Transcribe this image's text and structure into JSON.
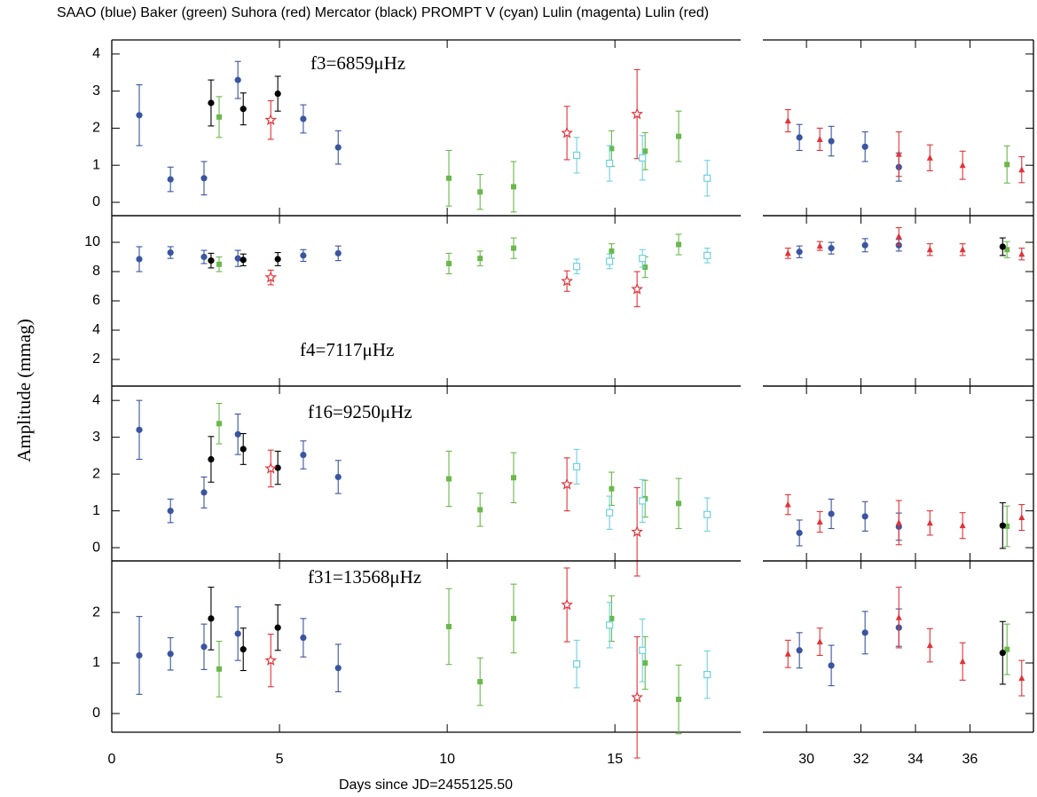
{
  "title": "SAAO (blue) Baker (green) Suhora (red) Mercator (black) PROMPT V (cyan) Lulin (magenta) Lulin (red)",
  "y_label": "Amplitude (mmag)",
  "x_axis": {
    "label": "Days since JD=2455125.50",
    "segments": [
      {
        "xlim": [
          0,
          18.75
        ],
        "xticks": [
          0,
          5,
          10,
          15
        ]
      },
      {
        "xlim": [
          28.4,
          38.33
        ],
        "xticks": [
          30,
          32,
          34,
          36
        ]
      }
    ]
  },
  "chart_data": [
    {
      "type": "scatter",
      "annotation": "f3=6859μHz",
      "ylim": [
        -0.36,
        4.38
      ],
      "yticks": [
        0,
        1,
        2,
        3,
        4
      ],
      "series": [
        {
          "color": "#3a55a0",
          "marker": "circle",
          "x": [
            0.82,
            1.75,
            2.75,
            3.76,
            5.71,
            6.75,
            29.74,
            30.91,
            32.15,
            33.39
          ],
          "values": [
            2.35,
            0.62,
            0.65,
            3.3,
            2.25,
            1.48,
            1.75,
            1.65,
            1.5,
            0.95
          ],
          "errors": [
            0.82,
            0.33,
            0.45,
            0.5,
            0.38,
            0.45,
            0.35,
            0.4,
            0.4,
            0.38
          ]
        },
        {
          "color": "#6ab84a",
          "marker": "square",
          "x": [
            3.2,
            10.05,
            10.98,
            11.98,
            14.9,
            15.9,
            16.9,
            37.36
          ],
          "values": [
            2.3,
            0.65,
            0.28,
            0.42,
            1.45,
            1.38,
            1.78,
            1.02
          ],
          "errors": [
            0.55,
            0.75,
            0.47,
            0.68,
            0.48,
            0.5,
            0.68,
            0.5
          ]
        },
        {
          "color": "#000000",
          "marker": "circle",
          "x": [
            2.96,
            3.92,
            4.95
          ],
          "values": [
            2.68,
            2.52,
            2.93
          ],
          "errors": [
            0.62,
            0.43,
            0.47
          ]
        },
        {
          "color": "#e0343a",
          "marker": "star",
          "x": [
            4.74,
            13.57,
            15.66
          ],
          "values": [
            2.22,
            1.87,
            2.38
          ],
          "errors": [
            0.52,
            0.72,
            1.2
          ]
        },
        {
          "color": "#70d0e0",
          "marker": "open-square",
          "x": [
            13.86,
            14.84,
            15.82,
            17.75
          ],
          "values": [
            1.27,
            1.05,
            1.2,
            0.65
          ],
          "errors": [
            0.48,
            0.48,
            0.6,
            0.48
          ]
        },
        {
          "color": "#e0343a",
          "marker": "triangle",
          "x": [
            29.32,
            30.49,
            33.39,
            34.53,
            35.73,
            37.9
          ],
          "values": [
            2.2,
            1.7,
            1.3,
            1.2,
            1.0,
            0.88
          ],
          "errors": [
            0.3,
            0.3,
            0.6,
            0.35,
            0.38,
            0.35
          ]
        }
      ]
    },
    {
      "type": "scatter",
      "annotation": "f4=7117μHz",
      "ylim": [
        0.18,
        11.82
      ],
      "yticks": [
        2,
        4,
        6,
        8,
        10
      ],
      "series": [
        {
          "color": "#3a55a0",
          "marker": "circle",
          "x": [
            0.82,
            1.75,
            2.75,
            3.76,
            5.71,
            6.75,
            29.74,
            30.91,
            32.15,
            33.39
          ],
          "values": [
            8.85,
            9.3,
            9.0,
            8.9,
            9.1,
            9.25,
            9.35,
            9.6,
            9.8,
            9.8
          ],
          "errors": [
            0.85,
            0.4,
            0.45,
            0.55,
            0.4,
            0.5,
            0.4,
            0.4,
            0.45,
            0.4
          ]
        },
        {
          "color": "#6ab84a",
          "marker": "square",
          "x": [
            3.2,
            10.05,
            10.98,
            11.98,
            14.9,
            15.9,
            16.9,
            37.36
          ],
          "values": [
            8.5,
            8.55,
            8.9,
            9.6,
            9.4,
            8.3,
            9.85,
            9.5
          ],
          "errors": [
            0.5,
            0.7,
            0.5,
            0.7,
            0.5,
            0.7,
            0.7,
            0.55
          ]
        },
        {
          "color": "#000000",
          "marker": "circle",
          "x": [
            2.96,
            3.92,
            4.95,
            37.2
          ],
          "values": [
            8.75,
            8.8,
            8.85,
            9.7
          ],
          "errors": [
            0.5,
            0.4,
            0.45,
            0.6
          ]
        },
        {
          "color": "#e0343a",
          "marker": "star",
          "x": [
            4.74,
            13.57,
            15.66
          ],
          "values": [
            7.6,
            7.35,
            6.8
          ],
          "errors": [
            0.5,
            0.7,
            1.2
          ]
        },
        {
          "color": "#70d0e0",
          "marker": "open-square",
          "x": [
            13.86,
            14.84,
            15.82,
            17.75
          ],
          "values": [
            8.35,
            8.7,
            8.9,
            9.1
          ],
          "errors": [
            0.5,
            0.5,
            0.6,
            0.5
          ]
        },
        {
          "color": "#e0343a",
          "marker": "triangle",
          "x": [
            29.32,
            30.49,
            33.39,
            34.53,
            35.73,
            37.9
          ],
          "values": [
            9.25,
            9.75,
            10.4,
            9.5,
            9.5,
            9.2
          ],
          "errors": [
            0.35,
            0.3,
            0.6,
            0.4,
            0.4,
            0.4
          ]
        }
      ]
    },
    {
      "type": "scatter",
      "annotation": "f16=9250μHz",
      "ylim": [
        -0.36,
        4.39
      ],
      "yticks": [
        0,
        1,
        2,
        3,
        4
      ],
      "series": [
        {
          "color": "#3a55a0",
          "marker": "circle",
          "x": [
            0.82,
            1.75,
            2.75,
            3.76,
            5.71,
            6.75,
            29.74,
            30.91,
            32.15,
            33.39
          ],
          "values": [
            3.2,
            1.0,
            1.5,
            3.08,
            2.52,
            1.92,
            0.4,
            0.92,
            0.85,
            0.57
          ],
          "errors": [
            0.8,
            0.32,
            0.42,
            0.55,
            0.38,
            0.45,
            0.35,
            0.4,
            0.4,
            0.37
          ]
        },
        {
          "color": "#6ab84a",
          "marker": "square",
          "x": [
            3.2,
            10.05,
            10.98,
            11.98,
            14.9,
            15.9,
            16.9,
            37.36
          ],
          "values": [
            3.37,
            1.87,
            1.03,
            1.9,
            1.6,
            1.33,
            1.2,
            0.58
          ],
          "errors": [
            0.55,
            0.75,
            0.45,
            0.68,
            0.45,
            0.5,
            0.68,
            0.55
          ]
        },
        {
          "color": "#000000",
          "marker": "circle",
          "x": [
            2.96,
            3.92,
            4.95,
            37.2
          ],
          "values": [
            2.4,
            2.68,
            2.17,
            0.6
          ],
          "errors": [
            0.62,
            0.42,
            0.45,
            0.62
          ]
        },
        {
          "color": "#e0343a",
          "marker": "star",
          "x": [
            4.74,
            13.57,
            15.66
          ],
          "values": [
            2.15,
            1.72,
            0.43
          ],
          "errors": [
            0.5,
            0.72,
            1.2
          ]
        },
        {
          "color": "#70d0e0",
          "marker": "open-square",
          "x": [
            13.86,
            14.84,
            15.82,
            17.75
          ],
          "values": [
            2.2,
            0.95,
            1.27,
            0.9
          ],
          "errors": [
            0.47,
            0.45,
            0.58,
            0.45
          ]
        },
        {
          "color": "#e0343a",
          "marker": "triangle",
          "x": [
            29.32,
            30.49,
            33.39,
            34.53,
            35.73,
            37.9
          ],
          "values": [
            1.17,
            0.7,
            0.68,
            0.67,
            0.6,
            0.82
          ],
          "errors": [
            0.27,
            0.28,
            0.6,
            0.33,
            0.35,
            0.35
          ]
        }
      ]
    },
    {
      "type": "scatter",
      "annotation": "f31=13568μHz",
      "ylim": [
        -0.37,
        3.02
      ],
      "yticks": [
        0,
        1,
        2
      ],
      "series": [
        {
          "color": "#3a55a0",
          "marker": "circle",
          "x": [
            0.82,
            1.75,
            2.75,
            3.76,
            5.71,
            6.75,
            29.74,
            30.91,
            32.15,
            33.39
          ],
          "values": [
            1.15,
            1.18,
            1.32,
            1.58,
            1.5,
            0.9,
            1.25,
            0.95,
            1.6,
            1.7
          ],
          "errors": [
            0.77,
            0.32,
            0.45,
            0.53,
            0.38,
            0.47,
            0.35,
            0.4,
            0.42,
            0.37
          ]
        },
        {
          "color": "#6ab84a",
          "marker": "square",
          "x": [
            3.2,
            10.05,
            10.98,
            11.98,
            14.9,
            15.9,
            16.9,
            37.36
          ],
          "values": [
            0.88,
            1.72,
            0.63,
            1.88,
            1.88,
            1.0,
            0.28,
            1.27
          ],
          "errors": [
            0.55,
            0.75,
            0.47,
            0.68,
            0.45,
            0.52,
            0.68,
            0.5
          ]
        },
        {
          "color": "#000000",
          "marker": "circle",
          "x": [
            2.96,
            3.92,
            4.95,
            37.2
          ],
          "values": [
            1.88,
            1.27,
            1.7,
            1.2
          ],
          "errors": [
            0.62,
            0.42,
            0.45,
            0.62
          ]
        },
        {
          "color": "#e0343a",
          "marker": "star",
          "x": [
            4.74,
            13.57,
            15.66
          ],
          "values": [
            1.05,
            2.15,
            0.32
          ],
          "errors": [
            0.52,
            0.73,
            1.2
          ]
        },
        {
          "color": "#70d0e0",
          "marker": "open-square",
          "x": [
            13.86,
            14.84,
            15.82,
            17.75
          ],
          "values": [
            0.98,
            1.75,
            1.25,
            0.77
          ],
          "errors": [
            0.47,
            0.45,
            0.62,
            0.47
          ]
        },
        {
          "color": "#e0343a",
          "marker": "triangle",
          "x": [
            29.32,
            30.49,
            33.39,
            34.53,
            35.73,
            37.9
          ],
          "values": [
            1.18,
            1.42,
            1.9,
            1.35,
            1.03,
            0.7
          ],
          "errors": [
            0.27,
            0.27,
            0.6,
            0.33,
            0.37,
            0.35
          ]
        }
      ]
    }
  ]
}
